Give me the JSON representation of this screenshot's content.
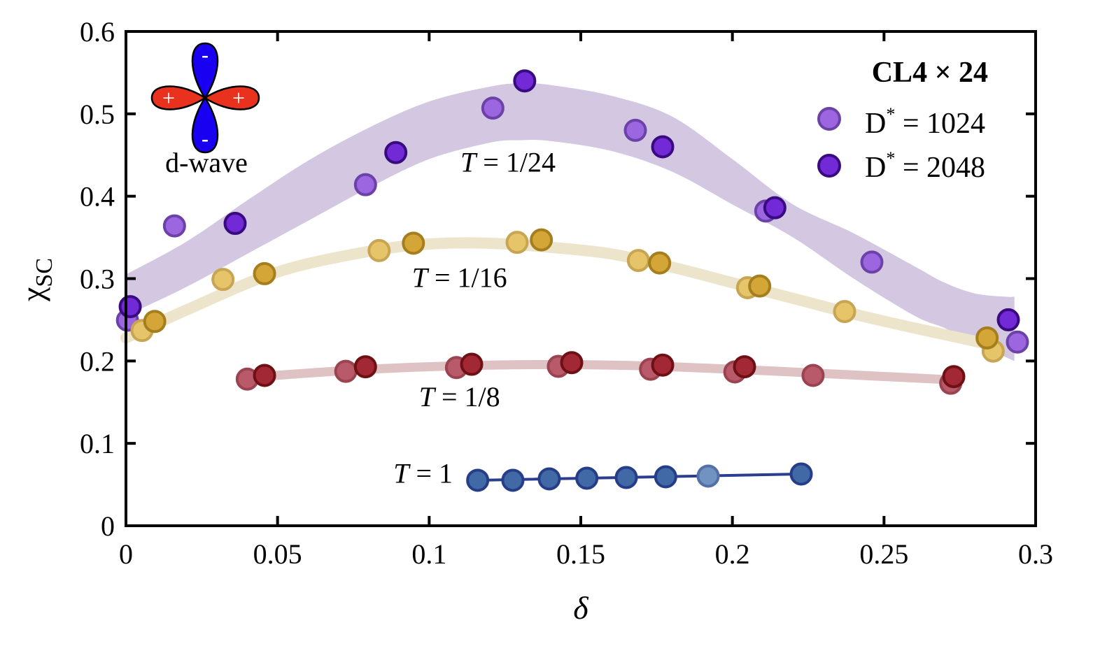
{
  "chart_data": {
    "type": "scatter",
    "title": "",
    "xlabel": "δ",
    "ylabel": "χ",
    "ylabel_sub": "SC",
    "xlim": [
      0,
      0.3
    ],
    "ylim": [
      0,
      0.6
    ],
    "xticks": [
      0,
      0.05,
      0.1,
      0.15,
      0.2,
      0.25,
      0.3
    ],
    "xtick_labels": [
      "0",
      "0.05",
      "0.1",
      "0.15",
      "0.2",
      "0.25",
      "0.3"
    ],
    "yticks": [
      0,
      0.1,
      0.2,
      0.3,
      0.4,
      0.5,
      0.6
    ],
    "ytick_labels": [
      "0",
      "0.1",
      "0.2",
      "0.3",
      "0.4",
      "0.5",
      "0.6"
    ],
    "grid": false,
    "legend": {
      "placement": "top-right",
      "title": "CL4 × 24",
      "entries": [
        {
          "label_main": "D",
          "label_sup": "*",
          "label_rest": " = 1024",
          "fill": "#9b66e0",
          "stroke": "#6c42a8"
        },
        {
          "label_main": "D",
          "label_sup": "*",
          "label_rest": " = 2048",
          "fill": "#7229d6",
          "stroke": "#3a0a80"
        }
      ]
    },
    "inset": {
      "label": "d-wave",
      "plus": "+",
      "minus": "-",
      "lobe_red": "#e8321e",
      "lobe_blue": "#1a00f0"
    },
    "annotations": [
      {
        "italic": "T",
        "rest": " = 1/24",
        "at": [
          0.126,
          0.43
        ]
      },
      {
        "italic": "T",
        "rest": " = 1/16",
        "at": [
          0.11,
          0.29
        ]
      },
      {
        "italic": "T",
        "rest": " = 1/8",
        "at": [
          0.11,
          0.145
        ]
      },
      {
        "italic": "T",
        "rest": " = 1",
        "at": [
          0.098,
          0.052
        ]
      }
    ],
    "band": {
      "label": "T = 1/24",
      "color": "#d3c7e2",
      "x": [
        0,
        0.02,
        0.04,
        0.06,
        0.08,
        0.1,
        0.12,
        0.13,
        0.14,
        0.16,
        0.18,
        0.2,
        0.22,
        0.24,
        0.26,
        0.27,
        0.28,
        0.29,
        0.293
      ],
      "upper": [
        0.305,
        0.345,
        0.395,
        0.443,
        0.483,
        0.515,
        0.533,
        0.537,
        0.535,
        0.522,
        0.497,
        0.445,
        0.39,
        0.355,
        0.315,
        0.295,
        0.282,
        0.278,
        0.278
      ],
      "lower": [
        0.255,
        0.29,
        0.33,
        0.37,
        0.41,
        0.445,
        0.465,
        0.468,
        0.467,
        0.455,
        0.43,
        0.39,
        0.35,
        0.3,
        0.255,
        0.24,
        0.222,
        0.205,
        0.2
      ]
    },
    "curves": [
      {
        "label": "T = 1/16",
        "color": "#ede4cc",
        "width": 16,
        "x": [
          0,
          0.02,
          0.05,
          0.08,
          0.1,
          0.12,
          0.14,
          0.16,
          0.18,
          0.2,
          0.22,
          0.24,
          0.26,
          0.28,
          0.287
        ],
        "y": [
          0.228,
          0.262,
          0.308,
          0.333,
          0.342,
          0.343,
          0.338,
          0.33,
          0.314,
          0.295,
          0.276,
          0.257,
          0.24,
          0.224,
          0.217
        ]
      },
      {
        "label": "T = 1/8",
        "color": "#dfc3c4",
        "width": 13,
        "x": [
          0.04,
          0.08,
          0.12,
          0.16,
          0.2,
          0.24,
          0.273
        ],
        "y": [
          0.18,
          0.19,
          0.195,
          0.195,
          0.19,
          0.183,
          0.177
        ]
      },
      {
        "label": "T = 1",
        "color": "#2a3d8f",
        "width": 4,
        "x": [
          0.116,
          0.2227
        ],
        "y": [
          0.0552,
          0.0628
        ]
      }
    ],
    "series": [
      {
        "name": "T = 1/24, D* = 1024",
        "fill": "#9b66e0",
        "stroke": "#6c42a8",
        "x": [
          0.0005,
          0.016,
          0.079,
          0.121,
          0.168,
          0.211,
          0.246,
          0.294
        ],
        "y": [
          0.2495,
          0.364,
          0.414,
          0.507,
          0.48,
          0.382,
          0.32,
          0.223
        ]
      },
      {
        "name": "T = 1/24, D* = 2048",
        "fill": "#7229d6",
        "stroke": "#3a0a80",
        "x": [
          0.0014,
          0.036,
          0.089,
          0.1315,
          0.177,
          0.214,
          0.291
        ],
        "y": [
          0.266,
          0.367,
          0.453,
          0.54,
          0.46,
          0.386,
          0.25
        ]
      },
      {
        "name": "T = 1/16, D* = 1024",
        "fill": "#e6c46a",
        "stroke": "#c8a552",
        "x": [
          0.0053,
          0.032,
          0.0835,
          0.129,
          0.169,
          0.205,
          0.237,
          0.286
        ],
        "y": [
          0.237,
          0.299,
          0.334,
          0.344,
          0.322,
          0.289,
          0.26,
          0.212
        ]
      },
      {
        "name": "T = 1/16, D* = 2048",
        "fill": "#d4a637",
        "stroke": "#a57e1e",
        "x": [
          0.0095,
          0.0457,
          0.0948,
          0.137,
          0.176,
          0.209,
          0.284
        ],
        "y": [
          0.248,
          0.306,
          0.343,
          0.347,
          0.319,
          0.291,
          0.228
        ]
      },
      {
        "name": "T = 1/8, D* = 1024",
        "fill": "#b95a6a",
        "stroke": "#9a4452",
        "x": [
          0.04,
          0.0725,
          0.109,
          0.1426,
          0.173,
          0.2008,
          0.2266,
          0.272
        ],
        "y": [
          0.178,
          0.1875,
          0.192,
          0.1935,
          0.19,
          0.1867,
          0.1825,
          0.173
        ]
      },
      {
        "name": "T = 1/8, D* = 2048",
        "fill": "#a32835",
        "stroke": "#6e1014",
        "x": [
          0.0457,
          0.079,
          0.114,
          0.147,
          0.177,
          0.204,
          0.273
        ],
        "y": [
          0.1825,
          0.193,
          0.196,
          0.198,
          0.195,
          0.193,
          0.181
        ]
      },
      {
        "name": "T = 1, D* = 1024",
        "fill": "#7093c2",
        "stroke": "#5570a8",
        "x": [
          0.192
        ],
        "y": [
          0.0603
        ]
      },
      {
        "name": "T = 1, D* = 2048",
        "fill": "#4169a5",
        "stroke": "#263e8a",
        "x": [
          0.116,
          0.1276,
          0.1396,
          0.152,
          0.165,
          0.178,
          0.2227
        ],
        "y": [
          0.0552,
          0.0552,
          0.0569,
          0.0577,
          0.0586,
          0.0594,
          0.0628
        ]
      }
    ]
  }
}
